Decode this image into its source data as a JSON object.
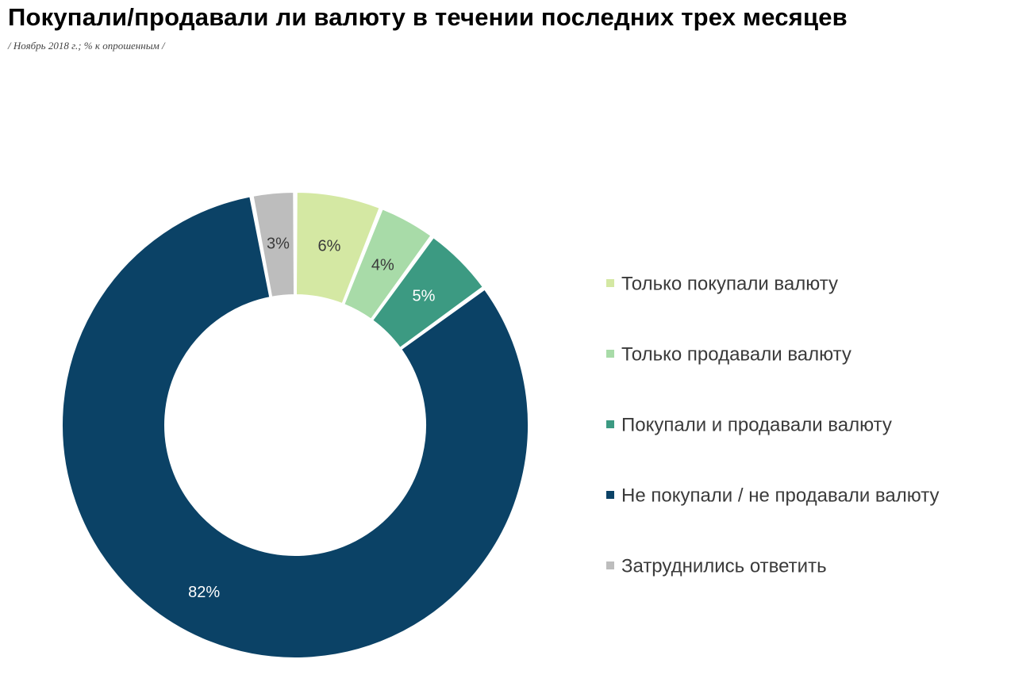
{
  "chart_data": {
    "type": "pie",
    "title": "Покупали/продавали ли валюту в течении последних трех месяцев",
    "subtitle": "/ Ноябрь 2018 г.; % к опрошенным /",
    "donut": true,
    "legend_position": "right",
    "slices": [
      {
        "label": "Только покупали валюту",
        "value": 6,
        "display": "6%",
        "color": "#d4e8a3",
        "label_color": "#3a3a3a"
      },
      {
        "label": "Только продавали валюту",
        "value": 4,
        "display": "4%",
        "color": "#a8dba8",
        "label_color": "#3a3a3a"
      },
      {
        "label": "Покупали и продавали валюту",
        "value": 5,
        "display": "5%",
        "color": "#3c9a82",
        "label_color": "#ffffff"
      },
      {
        "label": "Не покупали / не продавали валюту",
        "value": 82,
        "display": "82%",
        "color": "#0b4266",
        "label_color": "#ffffff"
      },
      {
        "label": "Затруднились ответить",
        "value": 3,
        "display": "3%",
        "color": "#bdbdbd",
        "label_color": "#3a3a3a"
      }
    ]
  }
}
